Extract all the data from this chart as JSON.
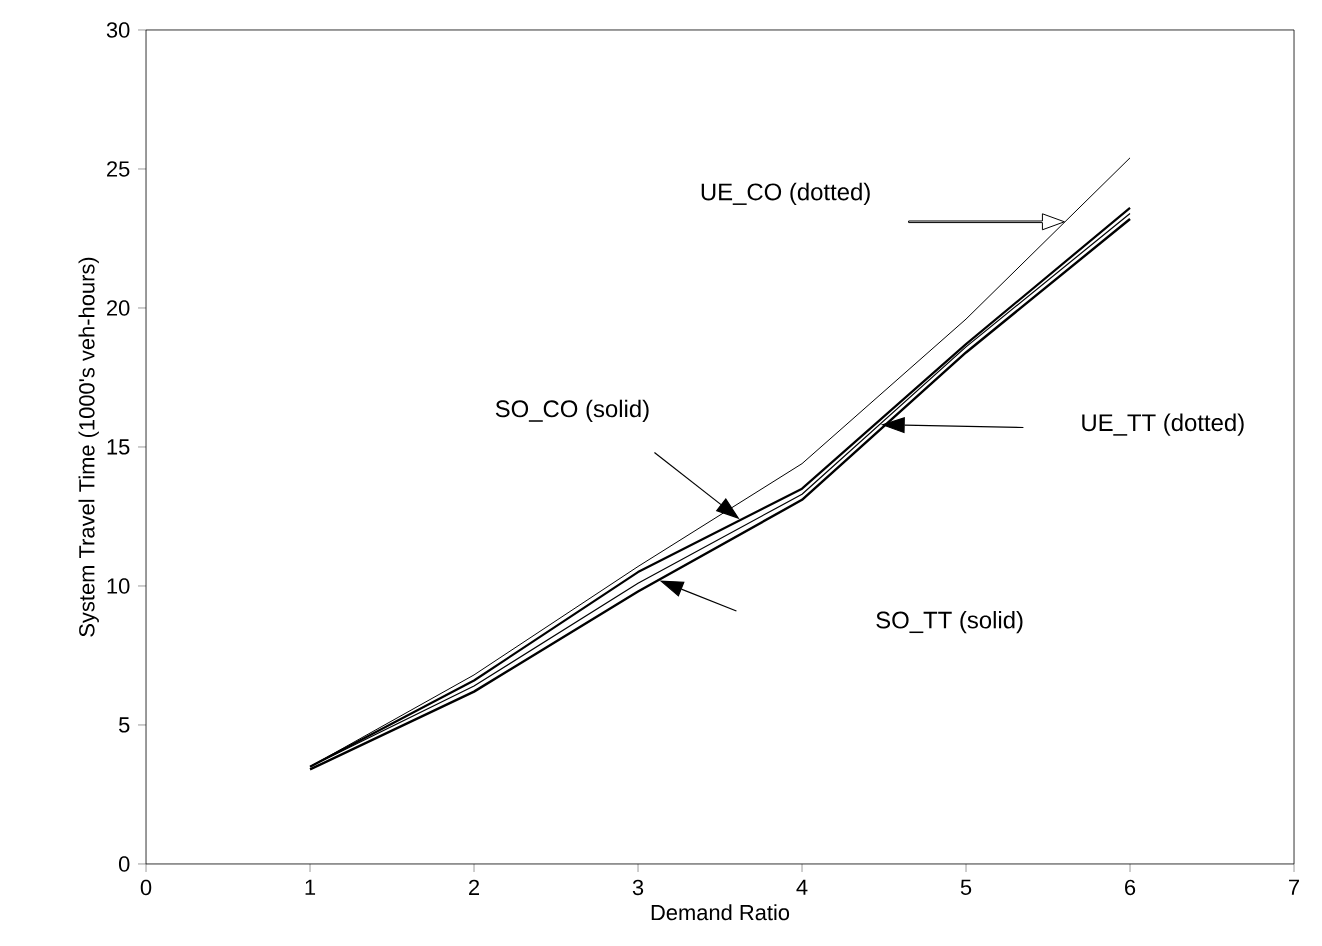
{
  "chart_data": {
    "type": "line",
    "xlabel": "Demand Ratio",
    "ylabel": "System Travel Time (1000's veh-hours)",
    "x": [
      1,
      2,
      3,
      4,
      5,
      6
    ],
    "series": [
      {
        "color": "#000000",
        "values": [
          3.5,
          6.8,
          10.7,
          14.4,
          19.6,
          25.4
        ]
      },
      {
        "color": "#000000",
        "values": [
          3.5,
          6.6,
          10.5,
          13.5,
          18.7,
          23.6
        ]
      },
      {
        "color": "#000000",
        "values": [
          3.5,
          6.4,
          10.1,
          13.3,
          18.6,
          23.4
        ]
      },
      {
        "color": "#000000",
        "values": [
          3.4,
          6.2,
          9.8,
          13.1,
          18.4,
          23.2
        ]
      }
    ],
    "annotations": [
      "UE_CO (dotted)",
      "SO_CO (solid)",
      "UE_TT (dotted)",
      "SO_TT (solid)"
    ],
    "xlim": [
      0,
      7
    ],
    "ylim": [
      0,
      30
    ],
    "xticks": [
      0,
      1,
      2,
      3,
      4,
      5,
      6,
      7
    ],
    "yticks": [
      0,
      5,
      10,
      15,
      20,
      25,
      30
    ],
    "grid": false,
    "marker": "none",
    "line_style": "solid"
  }
}
